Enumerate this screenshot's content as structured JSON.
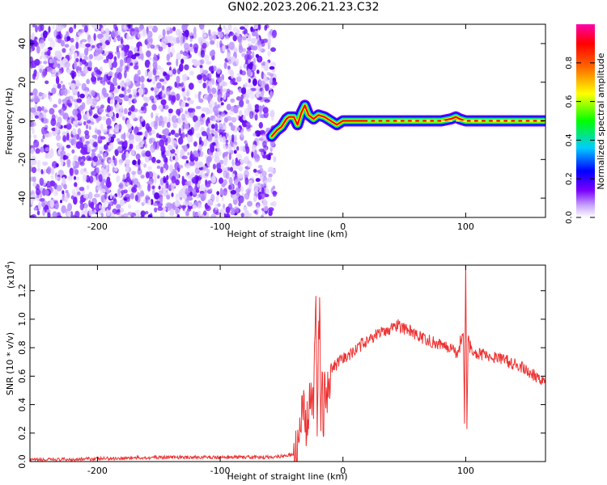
{
  "title": "GN02.2023.206.21.23.C32",
  "colors": {
    "snr_line": "#ee3333",
    "axis": "#000000"
  },
  "charts": [
    {
      "id": "spectrogram",
      "type": "heatmap",
      "xlabel": "Height of straight line (km)",
      "ylabel": "Frequency (Hz)",
      "xlim": [
        -255,
        165
      ],
      "ylim": [
        -50,
        50
      ],
      "xticks": [
        -200,
        -100,
        0,
        100
      ],
      "xtick_labels": [
        "-200",
        "-100",
        "0",
        "100"
      ],
      "yticks": [
        -40,
        -20,
        0,
        20,
        40
      ],
      "ytick_labels": [
        "-40",
        "-20",
        "0",
        "20",
        "40"
      ],
      "colorbar": {
        "label": "Normalized spectral amplitude",
        "range": [
          0.0,
          1.0
        ],
        "ticks": [
          0.0,
          0.2,
          0.4,
          0.6,
          0.8
        ],
        "tick_labels": [
          "0.0",
          "0.2",
          "0.4",
          "0.6",
          "0.8"
        ],
        "colormap": [
          "#ffffff",
          "#7a00ff",
          "#0000ff",
          "#00ccff",
          "#00ff00",
          "#ffff00",
          "#ff6600",
          "#ff0000",
          "#ff00aa"
        ]
      },
      "noise_region_x": [
        -255,
        -58
      ],
      "signal_track": [
        [
          -58,
          -8
        ],
        [
          -54,
          -5
        ],
        [
          -50,
          -3
        ],
        [
          -46,
          1
        ],
        [
          -44,
          2
        ],
        [
          -40,
          2
        ],
        [
          -37,
          -2
        ],
        [
          -34,
          4
        ],
        [
          -31,
          8
        ],
        [
          -28,
          3
        ],
        [
          -24,
          1
        ],
        [
          -20,
          3
        ],
        [
          -15,
          2
        ],
        [
          -10,
          0
        ],
        [
          -5,
          -2
        ],
        [
          0,
          0
        ],
        [
          5,
          0
        ],
        [
          10,
          0
        ],
        [
          30,
          0
        ],
        [
          60,
          0
        ],
        [
          80,
          0
        ],
        [
          88,
          1
        ],
        [
          92,
          2
        ],
        [
          95,
          1
        ],
        [
          100,
          0
        ],
        [
          130,
          0
        ],
        [
          165,
          0
        ]
      ]
    },
    {
      "id": "snr",
      "type": "line",
      "xlabel": "Height of straight line (km)",
      "ylabel": "SNR (10 * v/v)",
      "multiplier_label": "(x10",
      "multiplier_exp": "4",
      "multiplier_close": ")",
      "xlim": [
        -255,
        165
      ],
      "ylim": [
        0,
        1.38
      ],
      "xticks": [
        -200,
        -100,
        0,
        100
      ],
      "xtick_labels": [
        "-200",
        "-100",
        "0",
        "100"
      ],
      "yticks": [
        0,
        0.2,
        0.4,
        0.6,
        0.8,
        1.0,
        1.2
      ],
      "ytick_labels": [
        "0.0",
        "0.2",
        "0.4",
        "0.6",
        "0.8",
        "1.0",
        "1.2"
      ],
      "series": [
        {
          "x": [
            -255,
            -200,
            -150,
            -100,
            -60,
            -38,
            -36,
            -34,
            -32,
            -30,
            -28,
            -26,
            -24,
            -22,
            -21,
            -20,
            -19,
            -18,
            -17,
            -16,
            -15,
            -14,
            -12,
            -10,
            -5,
            0,
            10,
            20,
            30,
            40,
            45,
            50,
            55,
            60,
            70,
            80,
            90,
            94,
            96,
            98,
            99,
            100,
            101,
            102,
            103,
            106,
            110,
            120,
            130,
            140,
            150,
            165
          ],
          "y": [
            0.01,
            0.02,
            0.03,
            0.03,
            0.03,
            0.05,
            0.12,
            0.28,
            0.33,
            0.22,
            0.36,
            0.4,
            0.38,
            1.16,
            0.35,
            0.85,
            1.1,
            0.3,
            0.65,
            0.1,
            0.5,
            0.4,
            0.55,
            0.65,
            0.68,
            0.72,
            0.78,
            0.86,
            0.9,
            0.94,
            0.96,
            0.93,
            0.92,
            0.88,
            0.85,
            0.82,
            0.8,
            0.74,
            0.85,
            0.9,
            0.3,
            1.38,
            0.26,
            0.9,
            0.8,
            0.78,
            0.76,
            0.74,
            0.72,
            0.68,
            0.64,
            0.56
          ]
        }
      ]
    }
  ]
}
